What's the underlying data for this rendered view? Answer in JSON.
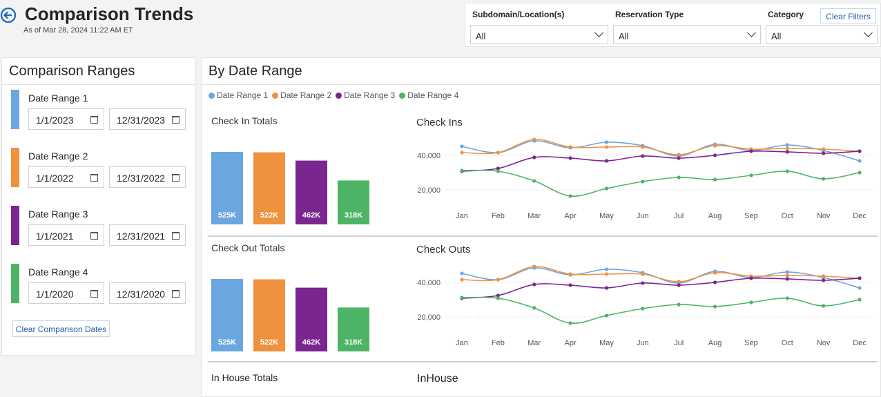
{
  "header": {
    "title": "Comparison Trends",
    "subtitle": "As of Mar 28, 2024 11:22 AM ET"
  },
  "filters": {
    "fields": [
      {
        "label": "Subdomain/Location(s)",
        "value": "All"
      },
      {
        "label": "Reservation Type",
        "value": "All"
      },
      {
        "label": "Category",
        "value": "All"
      }
    ],
    "clear_button": "Clear Filters"
  },
  "comparison_ranges": {
    "title": "Comparison Ranges",
    "ranges": [
      {
        "label": "Date Range 1",
        "color": "#6aa6e0",
        "start": "1/1/2023",
        "end": "12/31/2023"
      },
      {
        "label": "Date Range 2",
        "color": "#f0913e",
        "start": "1/1/2022",
        "end": "12/31/2022"
      },
      {
        "label": "Date Range 3",
        "color": "#7a2590",
        "start": "1/1/2021",
        "end": "12/31/2021"
      },
      {
        "label": "Date Range 4",
        "color": "#4cb464",
        "start": "1/1/2020",
        "end": "12/31/2020"
      }
    ],
    "clear_button": "Clear Comparison Dates"
  },
  "by_date_range": {
    "title": "By Date Range",
    "in_house_totals_title": "In House Totals",
    "in_house_title": "InHouse"
  },
  "chart_data": [
    {
      "type": "bar",
      "title": "Check In Totals",
      "values": [
        525000,
        522000,
        462000,
        318000
      ],
      "value_labels": [
        "525K",
        "522K",
        "462K",
        "318K"
      ],
      "colors": [
        "#6aa6e0",
        "#f0913e",
        "#7a2590",
        "#4cb464"
      ]
    },
    {
      "type": "line",
      "title": "Check Ins",
      "categories": [
        "Jan",
        "Feb",
        "Mar",
        "Apr",
        "May",
        "Jun",
        "Jul",
        "Aug",
        "Sep",
        "Oct",
        "Nov",
        "Dec"
      ],
      "ylim": [
        12000,
        52000
      ],
      "yticks": [
        {
          "value": 20000,
          "label": "20,000"
        },
        {
          "value": 40000,
          "label": "40,000"
        }
      ],
      "grid": true,
      "series": [
        {
          "name": "Date Range 1",
          "color": "#6aa6e0",
          "values": [
            45200,
            41600,
            48400,
            44400,
            47600,
            45600,
            39600,
            46400,
            42800,
            46000,
            42800,
            36800
          ]
        },
        {
          "name": "Date Range 2",
          "color": "#f0913e",
          "values": [
            41600,
            41600,
            49200,
            44800,
            44800,
            44800,
            40400,
            45600,
            43600,
            44000,
            43600,
            42400
          ]
        },
        {
          "name": "Date Range 3",
          "color": "#7a2590",
          "values": [
            30800,
            32400,
            38800,
            38400,
            36800,
            39600,
            38400,
            40000,
            42400,
            42000,
            41200,
            42400
          ]
        },
        {
          "name": "Date Range 4",
          "color": "#4cb464",
          "values": [
            31200,
            30800,
            25200,
            16400,
            20800,
            24800,
            27200,
            26000,
            28400,
            30800,
            26400,
            30000
          ]
        }
      ]
    },
    {
      "type": "bar",
      "title": "Check Out Totals",
      "values": [
        525000,
        522000,
        462000,
        318000
      ],
      "value_labels": [
        "525K",
        "522K",
        "462K",
        "318K"
      ],
      "colors": [
        "#6aa6e0",
        "#f0913e",
        "#7a2590",
        "#4cb464"
      ]
    },
    {
      "type": "line",
      "title": "Check Outs",
      "categories": [
        "Jan",
        "Feb",
        "Mar",
        "Apr",
        "May",
        "Jun",
        "Jul",
        "Aug",
        "Sep",
        "Oct",
        "Nov",
        "Dec"
      ],
      "ylim": [
        12000,
        52000
      ],
      "yticks": [
        {
          "value": 20000,
          "label": "20,000"
        },
        {
          "value": 40000,
          "label": "40,000"
        }
      ],
      "grid": true,
      "series": [
        {
          "color": "#6aa6e0",
          "values": [
            45200,
            41600,
            48400,
            44400,
            47600,
            45600,
            39600,
            46400,
            42800,
            46000,
            42800,
            36800
          ]
        },
        {
          "color": "#f0913e",
          "values": [
            41600,
            41600,
            49200,
            44800,
            44800,
            44800,
            40400,
            45600,
            43600,
            44000,
            43600,
            42400
          ]
        },
        {
          "color": "#7a2590",
          "values": [
            30800,
            32400,
            38800,
            38400,
            36800,
            39600,
            38400,
            40000,
            42400,
            42000,
            41200,
            42400
          ]
        },
        {
          "color": "#4cb464",
          "values": [
            31200,
            30800,
            25200,
            16400,
            20800,
            24800,
            27200,
            26000,
            28400,
            30800,
            26400,
            30000
          ]
        }
      ]
    }
  ]
}
